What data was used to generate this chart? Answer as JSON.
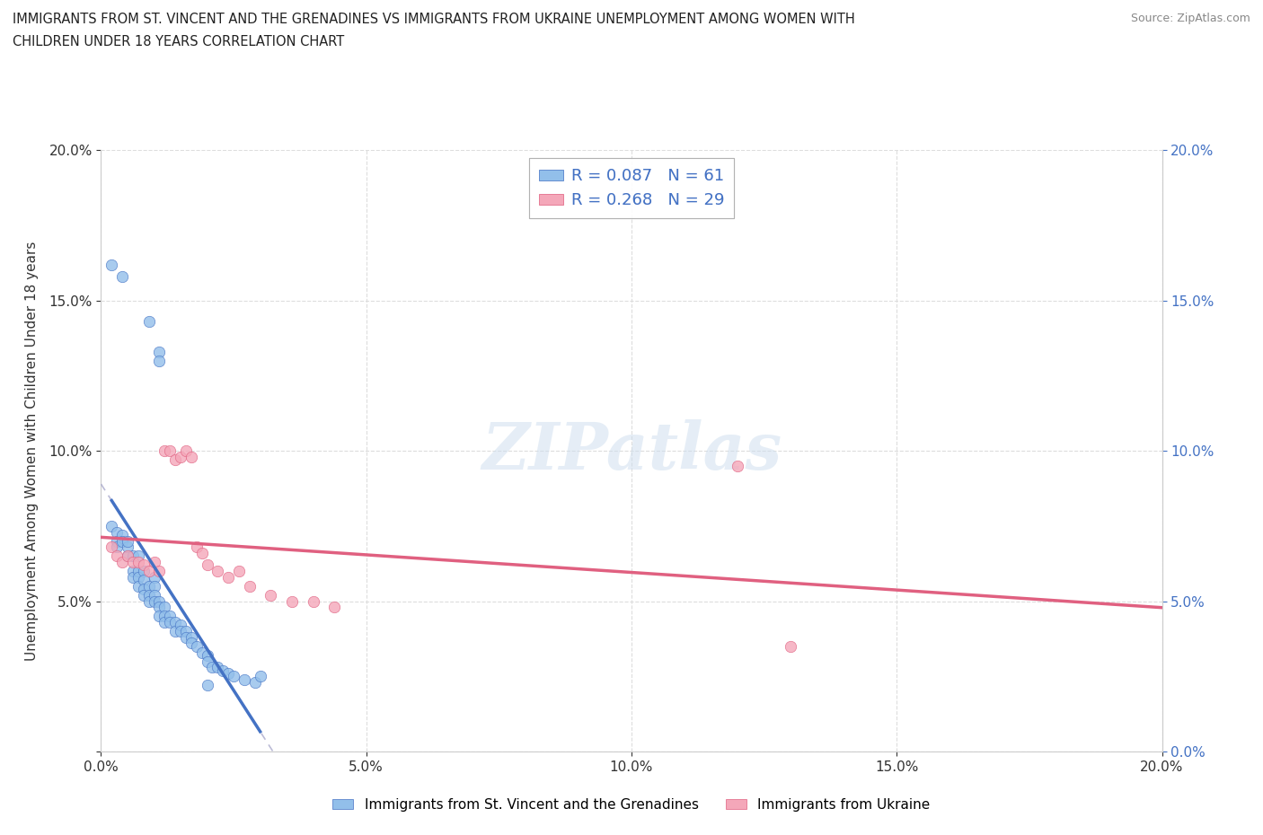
{
  "title_line1": "IMMIGRANTS FROM ST. VINCENT AND THE GRENADINES VS IMMIGRANTS FROM UKRAINE UNEMPLOYMENT AMONG WOMEN WITH",
  "title_line2": "CHILDREN UNDER 18 YEARS CORRELATION CHART",
  "source": "Source: ZipAtlas.com",
  "xlabel_blue": "Immigrants from St. Vincent and the Grenadines",
  "xlabel_pink": "Immigrants from Ukraine",
  "ylabel": "Unemployment Among Women with Children Under 18 years",
  "xlim": [
    0.0,
    0.2
  ],
  "ylim": [
    0.0,
    0.2
  ],
  "xtick_values": [
    0.0,
    0.05,
    0.1,
    0.15,
    0.2
  ],
  "ytick_values": [
    0.0,
    0.05,
    0.1,
    0.15,
    0.2
  ],
  "blue_color": "#92BFEA",
  "pink_color": "#F4A7B9",
  "blue_line_color": "#4472C4",
  "pink_line_color": "#E06080",
  "dash_line_color": "#AAAACC",
  "R_blue": 0.087,
  "N_blue": 61,
  "R_pink": 0.268,
  "N_pink": 29,
  "blue_scatter_x": [
    0.002,
    0.004,
    0.009,
    0.011,
    0.011,
    0.002,
    0.003,
    0.003,
    0.003,
    0.004,
    0.004,
    0.005,
    0.005,
    0.005,
    0.006,
    0.006,
    0.006,
    0.007,
    0.007,
    0.007,
    0.007,
    0.008,
    0.008,
    0.008,
    0.008,
    0.009,
    0.009,
    0.009,
    0.01,
    0.01,
    0.01,
    0.01,
    0.011,
    0.011,
    0.011,
    0.012,
    0.012,
    0.012,
    0.013,
    0.013,
    0.014,
    0.014,
    0.015,
    0.015,
    0.016,
    0.016,
    0.017,
    0.017,
    0.018,
    0.019,
    0.02,
    0.02,
    0.021,
    0.022,
    0.023,
    0.024,
    0.025,
    0.027,
    0.029,
    0.03,
    0.02
  ],
  "blue_scatter_y": [
    0.162,
    0.158,
    0.143,
    0.133,
    0.13,
    0.075,
    0.073,
    0.07,
    0.068,
    0.072,
    0.07,
    0.065,
    0.068,
    0.07,
    0.065,
    0.06,
    0.058,
    0.065,
    0.06,
    0.058,
    0.055,
    0.06,
    0.057,
    0.054,
    0.052,
    0.055,
    0.052,
    0.05,
    0.058,
    0.055,
    0.052,
    0.05,
    0.05,
    0.048,
    0.045,
    0.048,
    0.045,
    0.043,
    0.045,
    0.043,
    0.043,
    0.04,
    0.042,
    0.04,
    0.04,
    0.038,
    0.038,
    0.036,
    0.035,
    0.033,
    0.032,
    0.03,
    0.028,
    0.028,
    0.027,
    0.026,
    0.025,
    0.024,
    0.023,
    0.025,
    0.022
  ],
  "pink_scatter_x": [
    0.002,
    0.003,
    0.004,
    0.005,
    0.006,
    0.007,
    0.008,
    0.009,
    0.01,
    0.011,
    0.012,
    0.013,
    0.014,
    0.015,
    0.016,
    0.017,
    0.018,
    0.019,
    0.02,
    0.022,
    0.024,
    0.026,
    0.028,
    0.032,
    0.036,
    0.04,
    0.044,
    0.12,
    0.13
  ],
  "pink_scatter_y": [
    0.068,
    0.065,
    0.063,
    0.065,
    0.063,
    0.063,
    0.062,
    0.06,
    0.063,
    0.06,
    0.1,
    0.1,
    0.097,
    0.098,
    0.1,
    0.098,
    0.068,
    0.066,
    0.062,
    0.06,
    0.058,
    0.06,
    0.055,
    0.052,
    0.05,
    0.05,
    0.048,
    0.095,
    0.035
  ],
  "watermark_text": "ZIPatlas",
  "background_color": "#FFFFFF",
  "grid_color": "#DDDDDD"
}
